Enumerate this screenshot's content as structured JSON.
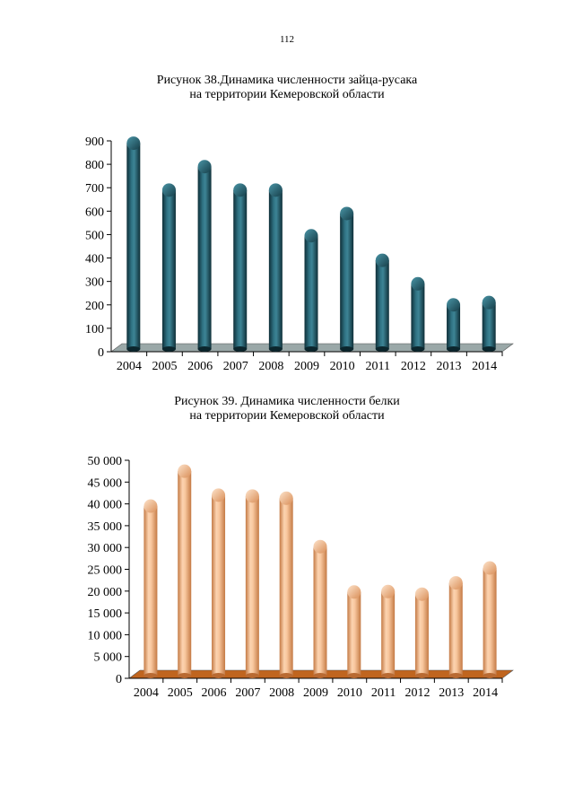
{
  "page": {
    "number": "112"
  },
  "chart_data": [
    {
      "type": "bar",
      "title_line1": "Рисунок 38.Динамика численности зайца-русака",
      "title_line2": "на территории Кемеровской области",
      "categories": [
        "2004",
        "2005",
        "2006",
        "2007",
        "2008",
        "2009",
        "2010",
        "2011",
        "2012",
        "2013",
        "2014"
      ],
      "values": [
        890,
        690,
        790,
        690,
        690,
        495,
        590,
        390,
        290,
        200,
        210
      ],
      "ylim": [
        0,
        900
      ],
      "yticks": [
        0,
        100,
        200,
        300,
        400,
        500,
        600,
        700,
        800,
        900
      ],
      "ytick_labels": [
        "0",
        "100",
        "200",
        "300",
        "400",
        "500",
        "600",
        "700",
        "800",
        "900"
      ],
      "bar_color": "#1d4e5c",
      "floor_color": "#9aa8a8",
      "grid": false,
      "legend": "none"
    },
    {
      "type": "bar",
      "title_line1": "Рисунок 39. Динамика численности белки",
      "title_line2": "на территории Кемеровской области",
      "categories": [
        "2004",
        "2005",
        "2006",
        "2007",
        "2008",
        "2009",
        "2010",
        "2011",
        "2012",
        "2013",
        "2014"
      ],
      "values": [
        39500,
        47500,
        42000,
        41800,
        41300,
        30200,
        19800,
        19900,
        19300,
        21900,
        25300
      ],
      "ylim": [
        0,
        50000
      ],
      "yticks": [
        0,
        5000,
        10000,
        15000,
        20000,
        25000,
        30000,
        35000,
        40000,
        45000,
        50000
      ],
      "ytick_labels": [
        "0",
        "5 000",
        "10 000",
        "15 000",
        "20 000",
        "25 000",
        "30 000",
        "35 000",
        "40 000",
        "45 000",
        "50 000"
      ],
      "bar_color": "#f4b183",
      "floor_color": "#c0651f",
      "grid": false,
      "legend": "none"
    }
  ]
}
